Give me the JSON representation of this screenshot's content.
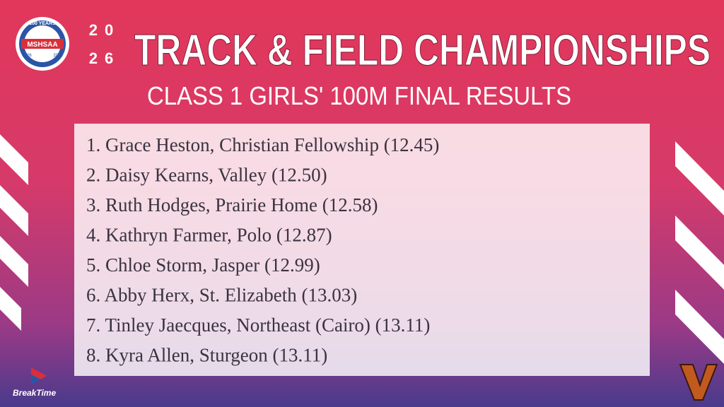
{
  "header": {
    "year_top": "20",
    "year_bottom": "26",
    "title": "TRACK & FIELD CHAMPIONSHIPS",
    "subtitle": "CLASS 1 GIRLS' 100M FINAL RESULTS"
  },
  "logo": {
    "banner": "100 YEARS",
    "name": "MSHSAA",
    "start": "1926",
    "end": "2026"
  },
  "results": [
    "1. Grace Heston, Christian Fellowship (12.45)",
    "2. Daisy Kearns, Valley (12.50)",
    "3. Ruth Hodges, Prairie Home (12.58)",
    "4. Kathryn Farmer, Polo (12.87)",
    "5. Chloe Storm, Jasper (12.99)",
    "6. Abby Herx, St. Elizabeth (13.03)",
    "7. Tinley Jaecques, Northeast (Cairo) (13.11)",
    "8. Kyra Allen, Sturgeon (13.11)"
  ],
  "sponsor": "BreakTime"
}
